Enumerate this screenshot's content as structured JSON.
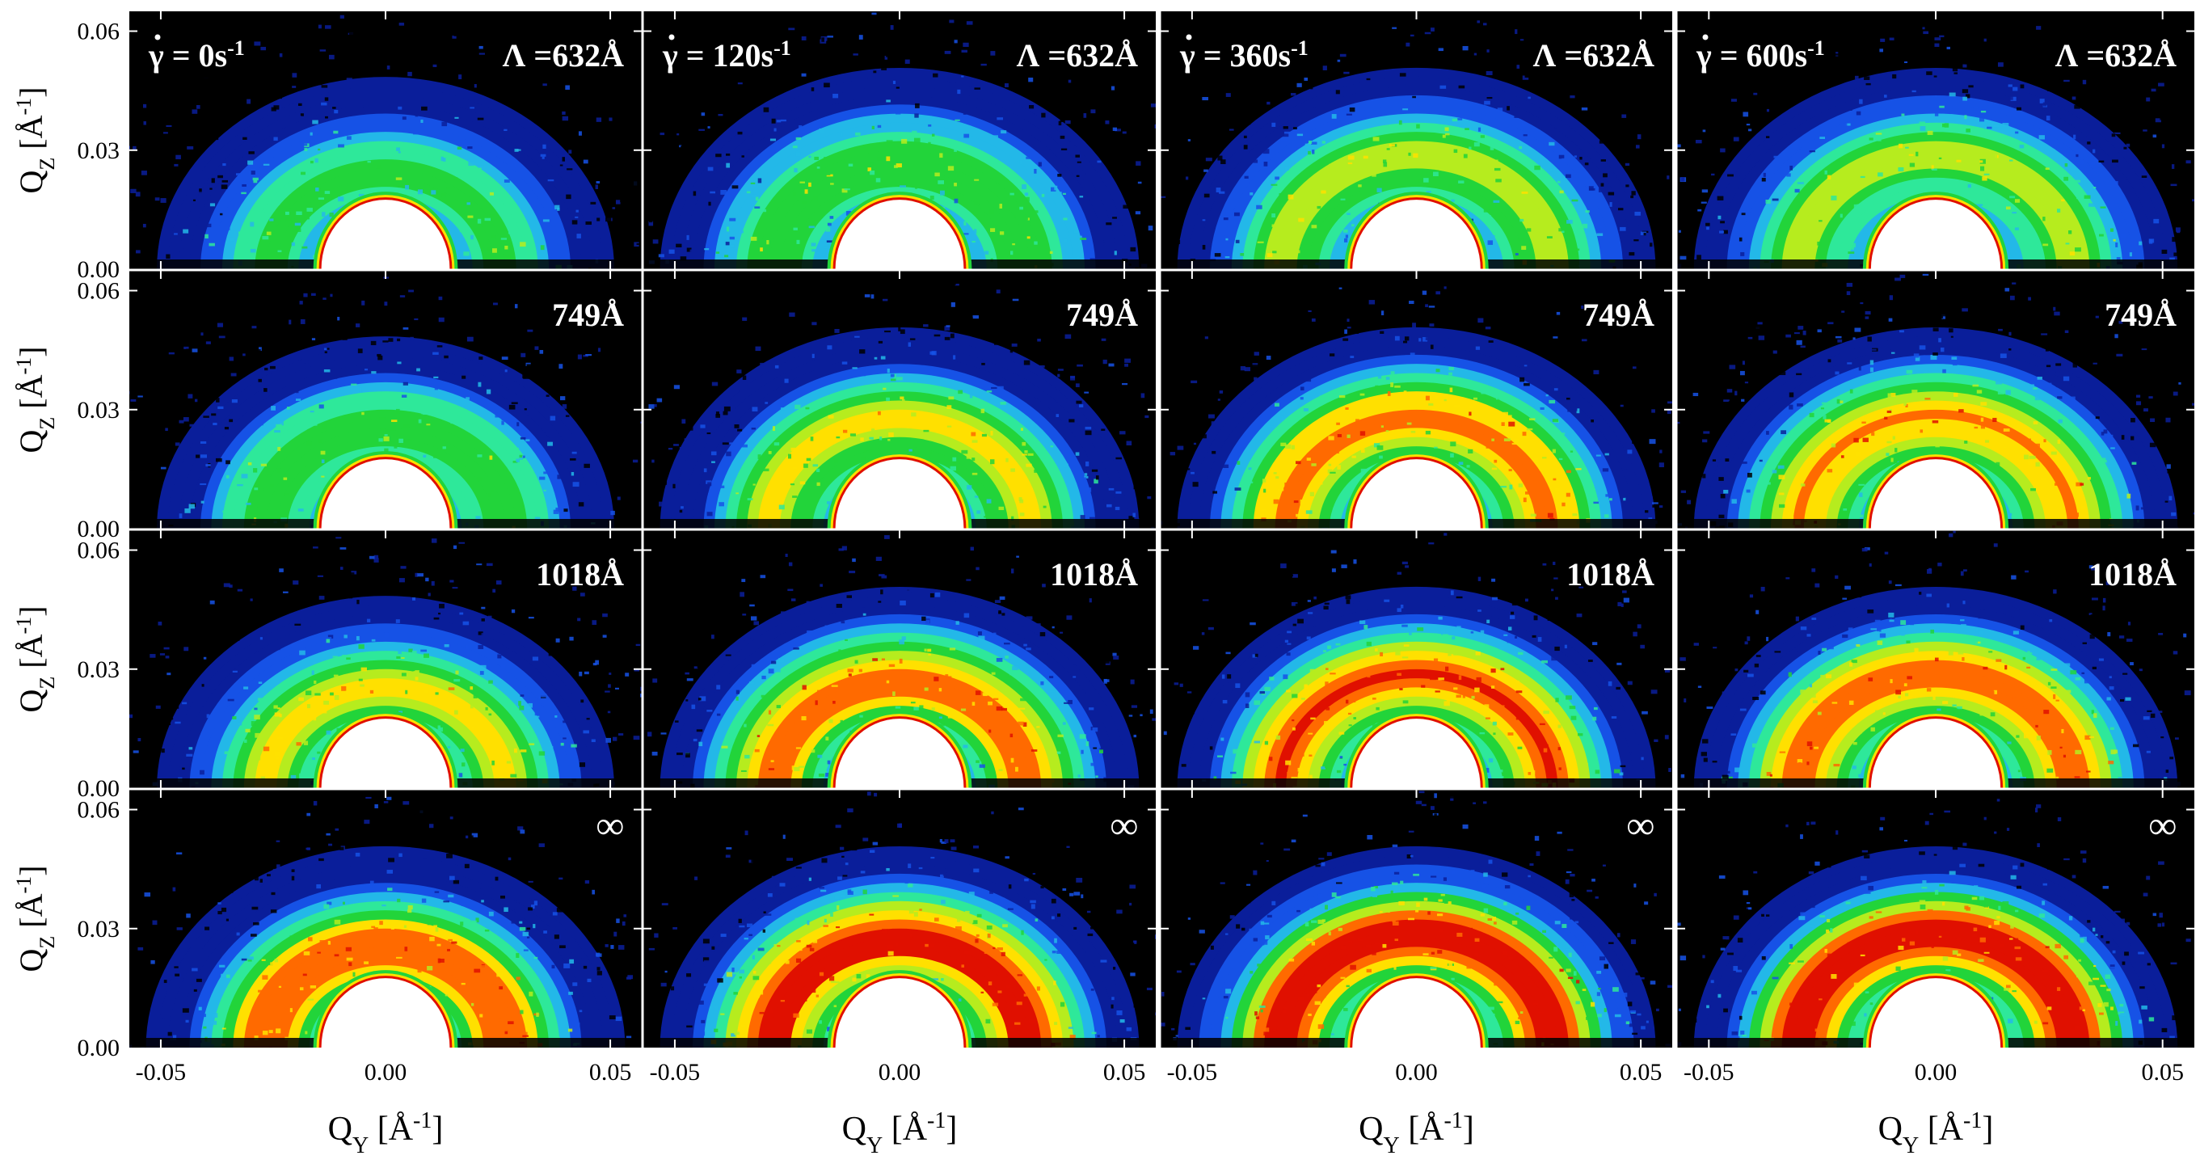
{
  "figure": {
    "x_axis_label": {
      "main": "Q",
      "sub": "Y",
      "unit_open": " [Å",
      "unit_sup": "-1",
      "unit_close": "]"
    },
    "y_axis_label": {
      "main": "Q",
      "sub": "Z",
      "unit_open": " [Å",
      "unit_sup": "-1",
      "unit_close": "]"
    },
    "x_ticks": [
      "-0.05",
      "0.00",
      "0.05"
    ],
    "y_ticks": [
      "0.00",
      "0.03",
      "0.06"
    ],
    "shear_labels": [
      {
        "prefix": "γ = ",
        "value": "0s",
        "sup": "-1"
      },
      {
        "prefix": "γ = ",
        "value": "120s",
        "sup": "-1"
      },
      {
        "prefix": "γ = ",
        "value": "360s",
        "sup": "-1"
      },
      {
        "prefix": "γ = ",
        "value": "600s",
        "sup": "-1"
      }
    ],
    "row_labels": [
      "Λ =632Å",
      "749Å",
      "1018Å",
      "∞"
    ]
  },
  "chart_data": {
    "type": "heatmap",
    "description_grid": "4 rows x 4 columns of 2D scattering intensity maps (Q_Y vs Q_Z)",
    "xlim": [
      -0.057,
      0.057
    ],
    "ylim": [
      0.0,
      0.065
    ],
    "xlabel": "QY [Å-1]",
    "ylabel": "QZ [Å-1]",
    "colormap": [
      "#000000",
      "#0a1e9a",
      "#1652e6",
      "#23b8e8",
      "#2ee89a",
      "#22d43a",
      "#b6ec1e",
      "#ffe000",
      "#ff6a00",
      "#e01000",
      "#ffffff"
    ],
    "columns": [
      "γ = 0s-1",
      "γ = 120s-1",
      "γ = 360s-1",
      "γ = 600s-1"
    ],
    "rows": [
      "Λ =632Å",
      "749Å",
      "1018Å",
      "∞"
    ],
    "ring_peak_qz": [
      0.027,
      0.029,
      0.03,
      0.03
    ],
    "ring_peak_intensity": [
      [
        0.42,
        0.5,
        0.56,
        0.54
      ],
      [
        0.48,
        0.62,
        0.76,
        0.74
      ],
      [
        0.62,
        0.8,
        0.84,
        0.82
      ],
      [
        0.82,
        0.92,
        0.93,
        0.92
      ]
    ],
    "beamstop_radius_qz": 0.014
  }
}
